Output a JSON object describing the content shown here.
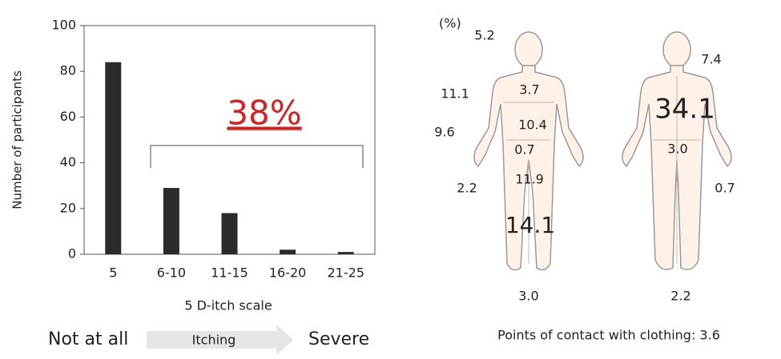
{
  "chart_data": {
    "type": "bar",
    "categories": [
      "5",
      "6-10",
      "11-15",
      "16-20",
      "21-25"
    ],
    "values": [
      84,
      29,
      18,
      2,
      1
    ],
    "color": "#2b2b2b",
    "ylim": [
      0,
      100
    ],
    "yticks": [
      0,
      20,
      40,
      60,
      80,
      100
    ],
    "ylabel": "Number of participants",
    "xlabel": "5 D-itch scale",
    "annotation": "38%",
    "scale_arrow": {
      "left": "Not at all",
      "middle": "Itching",
      "right": "Severe"
    }
  },
  "body_map": {
    "unit": "(%)",
    "front": [
      "5.2",
      "11.1",
      "9.6",
      "2.2",
      "3.7",
      "10.4",
      "0.7",
      "11.9",
      "14.1",
      "3.0"
    ],
    "back": [
      "7.4",
      "34.1",
      "3.0",
      "0.7",
      "2.2"
    ],
    "footnote": "Points of contact with clothing: 3.6"
  }
}
